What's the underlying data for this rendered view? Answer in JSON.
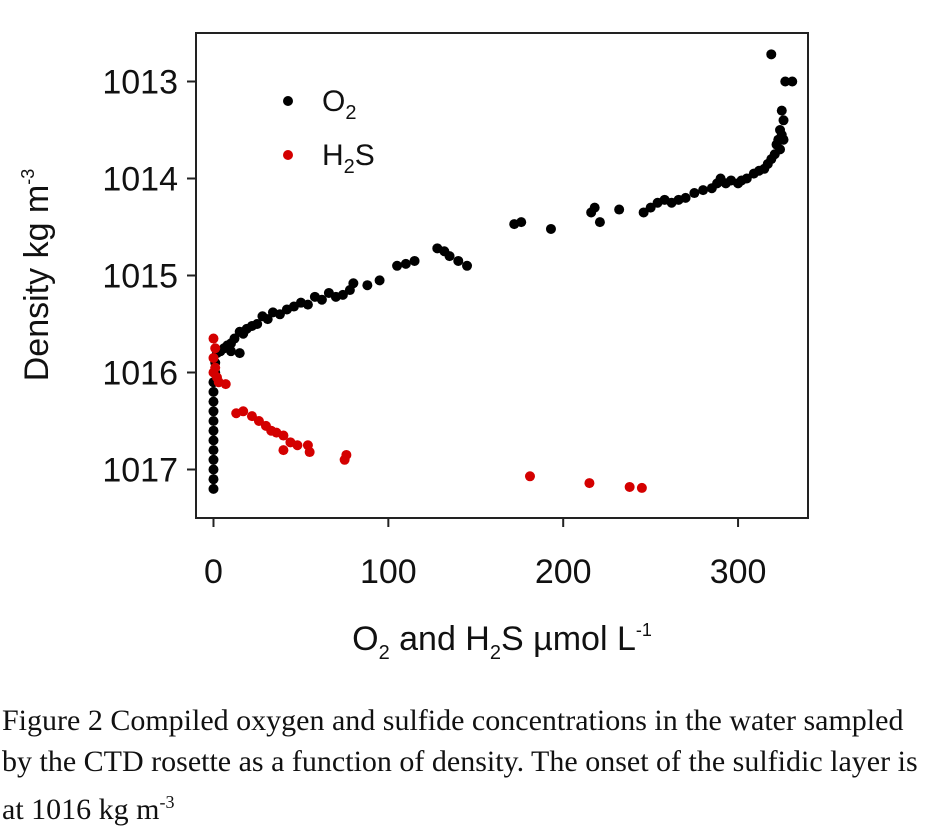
{
  "chart_data": {
    "type": "scatter",
    "xlabel": {
      "prefix": "O",
      "sub1": "2",
      "mid": " and H",
      "sub2": "2",
      "post": "S  µmol L",
      "sup": "-1"
    },
    "ylabel": {
      "text": "Density kg m",
      "sup": "-3"
    },
    "xlim": [
      -10,
      340
    ],
    "ylim": [
      1017.5,
      1012.5
    ],
    "x_ticks": [
      0,
      100,
      200,
      300
    ],
    "y_ticks": [
      1013,
      1014,
      1015,
      1016,
      1017
    ],
    "x_tick_labels": [
      "0",
      "100",
      "200",
      "300"
    ],
    "y_tick_labels": [
      "1013",
      "1014",
      "1015",
      "1016",
      "1017"
    ],
    "legend": {
      "placement": "top-left",
      "o2": {
        "base": "O",
        "sub": "2"
      },
      "h2s": {
        "base": "H",
        "sub": "2",
        "post": "S"
      }
    },
    "series": [
      {
        "key": "o2",
        "color": "#000000",
        "points": [
          [
            319,
            1012.72
          ],
          [
            327,
            1013.0
          ],
          [
            331,
            1013.0
          ],
          [
            325,
            1013.3
          ],
          [
            326,
            1013.4
          ],
          [
            324,
            1013.5
          ],
          [
            325,
            1013.55
          ],
          [
            323,
            1013.6
          ],
          [
            326,
            1013.6
          ],
          [
            322,
            1013.65
          ],
          [
            324,
            1013.7
          ],
          [
            321,
            1013.75
          ],
          [
            319,
            1013.8
          ],
          [
            317,
            1013.85
          ],
          [
            315,
            1013.9
          ],
          [
            312,
            1013.92
          ],
          [
            309,
            1013.95
          ],
          [
            305,
            1014.0
          ],
          [
            302,
            1014.02
          ],
          [
            300,
            1014.05
          ],
          [
            296,
            1014.02
          ],
          [
            293,
            1014.05
          ],
          [
            290,
            1014.0
          ],
          [
            288,
            1014.05
          ],
          [
            285,
            1014.1
          ],
          [
            280,
            1014.12
          ],
          [
            275,
            1014.15
          ],
          [
            270,
            1014.2
          ],
          [
            266,
            1014.22
          ],
          [
            262,
            1014.25
          ],
          [
            258,
            1014.22
          ],
          [
            254,
            1014.25
          ],
          [
            250,
            1014.3
          ],
          [
            246,
            1014.35
          ],
          [
            232,
            1014.32
          ],
          [
            218,
            1014.3
          ],
          [
            216,
            1014.35
          ],
          [
            221,
            1014.45
          ],
          [
            193,
            1014.52
          ],
          [
            172,
            1014.47
          ],
          [
            176,
            1014.45
          ],
          [
            145,
            1014.9
          ],
          [
            140,
            1014.85
          ],
          [
            135,
            1014.8
          ],
          [
            132,
            1014.75
          ],
          [
            128,
            1014.72
          ],
          [
            115,
            1014.85
          ],
          [
            110,
            1014.88
          ],
          [
            105,
            1014.9
          ],
          [
            95,
            1015.05
          ],
          [
            88,
            1015.1
          ],
          [
            80,
            1015.08
          ],
          [
            78,
            1015.15
          ],
          [
            74,
            1015.2
          ],
          [
            70,
            1015.22
          ],
          [
            66,
            1015.18
          ],
          [
            62,
            1015.25
          ],
          [
            58,
            1015.22
          ],
          [
            54,
            1015.3
          ],
          [
            50,
            1015.28
          ],
          [
            46,
            1015.32
          ],
          [
            42,
            1015.35
          ],
          [
            38,
            1015.4
          ],
          [
            34,
            1015.38
          ],
          [
            31,
            1015.45
          ],
          [
            28,
            1015.42
          ],
          [
            25,
            1015.5
          ],
          [
            22,
            1015.52
          ],
          [
            19,
            1015.55
          ],
          [
            17,
            1015.6
          ],
          [
            15,
            1015.58
          ],
          [
            12,
            1015.65
          ],
          [
            10,
            1015.7
          ],
          [
            8,
            1015.72
          ],
          [
            6,
            1015.75
          ],
          [
            4,
            1015.78
          ],
          [
            2,
            1015.8
          ],
          [
            15,
            1015.8
          ],
          [
            10,
            1015.78
          ],
          [
            1,
            1015.9
          ],
          [
            1,
            1016.0
          ],
          [
            0,
            1016.1
          ],
          [
            0,
            1016.2
          ],
          [
            0,
            1016.3
          ],
          [
            0,
            1016.4
          ],
          [
            0,
            1016.5
          ],
          [
            0,
            1016.6
          ],
          [
            0,
            1016.7
          ],
          [
            0,
            1016.8
          ],
          [
            0,
            1016.9
          ],
          [
            0,
            1017.0
          ],
          [
            0,
            1017.1
          ],
          [
            0,
            1017.2
          ]
        ]
      },
      {
        "key": "h2s",
        "color": "#d40000",
        "points": [
          [
            0,
            1015.65
          ],
          [
            1,
            1015.75
          ],
          [
            0,
            1015.85
          ],
          [
            1,
            1015.95
          ],
          [
            0,
            1016.0
          ],
          [
            2,
            1016.05
          ],
          [
            3,
            1016.1
          ],
          [
            7,
            1016.12
          ],
          [
            13,
            1016.42
          ],
          [
            17,
            1016.4
          ],
          [
            22,
            1016.45
          ],
          [
            26,
            1016.5
          ],
          [
            30,
            1016.55
          ],
          [
            33,
            1016.6
          ],
          [
            36,
            1016.62
          ],
          [
            40,
            1016.65
          ],
          [
            44,
            1016.72
          ],
          [
            48,
            1016.75
          ],
          [
            40,
            1016.8
          ],
          [
            54,
            1016.75
          ],
          [
            55,
            1016.82
          ],
          [
            76,
            1016.85
          ],
          [
            75,
            1016.9
          ],
          [
            181,
            1017.07
          ],
          [
            215,
            1017.14
          ],
          [
            238,
            1017.18
          ],
          [
            245,
            1017.19
          ]
        ]
      }
    ]
  },
  "caption": {
    "text": "Figure 2 Compiled oxygen and sulfide concentrations in the water sampled by the CTD rosette as a function of density. The onset of the sulfidic layer is at 1016 kg m",
    "sup": "-3"
  }
}
